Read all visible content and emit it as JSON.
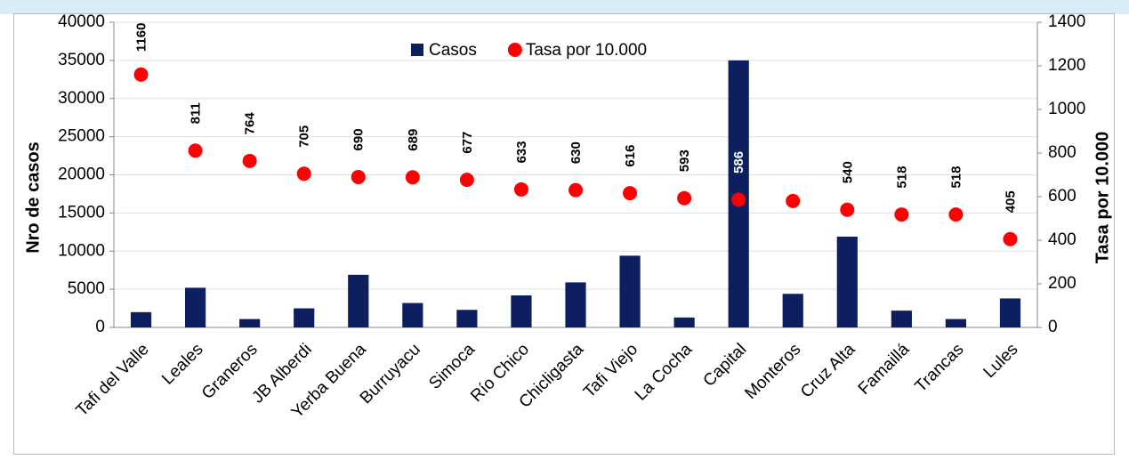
{
  "chart_data": {
    "type": "bar-scatter",
    "categories": [
      "Tafi del Valle",
      "Leales",
      "Graneros",
      "JB Alberdi",
      "Yerba Buena",
      "Burruyacu",
      "Simoca",
      "Río Chico",
      "Chicligasta",
      "Tafi Viejo",
      "La Cocha",
      "Capital",
      "Monteros",
      "Cruz Alta",
      "Famaillá",
      "Trancas",
      "Lules"
    ],
    "series": [
      {
        "name": "Casos",
        "type": "bar",
        "color": "#0d1f5e",
        "values": [
          2000,
          5200,
          1100,
          2500,
          6900,
          3200,
          2300,
          4200,
          5900,
          9400,
          1300,
          35000,
          4400,
          11900,
          2200,
          1100,
          3800
        ]
      },
      {
        "name": "Tasa por 10.000",
        "type": "scatter",
        "axis": "y2",
        "color": "#ff0000",
        "values": [
          1160,
          811,
          764,
          705,
          690,
          689,
          677,
          633,
          630,
          616,
          593,
          586,
          580,
          540,
          518,
          518,
          405
        ],
        "value_labels": [
          "1160",
          "811",
          "764",
          "705",
          "690",
          "689",
          "677",
          "633",
          "630",
          "616",
          "593",
          "586",
          null,
          "540",
          "518",
          "518",
          "405"
        ]
      }
    ],
    "ylabel": "Nro de casos",
    "y2label": "Tasa por 10.000",
    "ylim": [
      0,
      40000
    ],
    "yticks": [
      0,
      5000,
      10000,
      15000,
      20000,
      25000,
      30000,
      35000,
      40000
    ],
    "y2lim": [
      0,
      1400
    ],
    "y2ticks": [
      0,
      200,
      400,
      600,
      800,
      1000,
      1200,
      1400
    ],
    "grid": true,
    "legend": "top"
  }
}
